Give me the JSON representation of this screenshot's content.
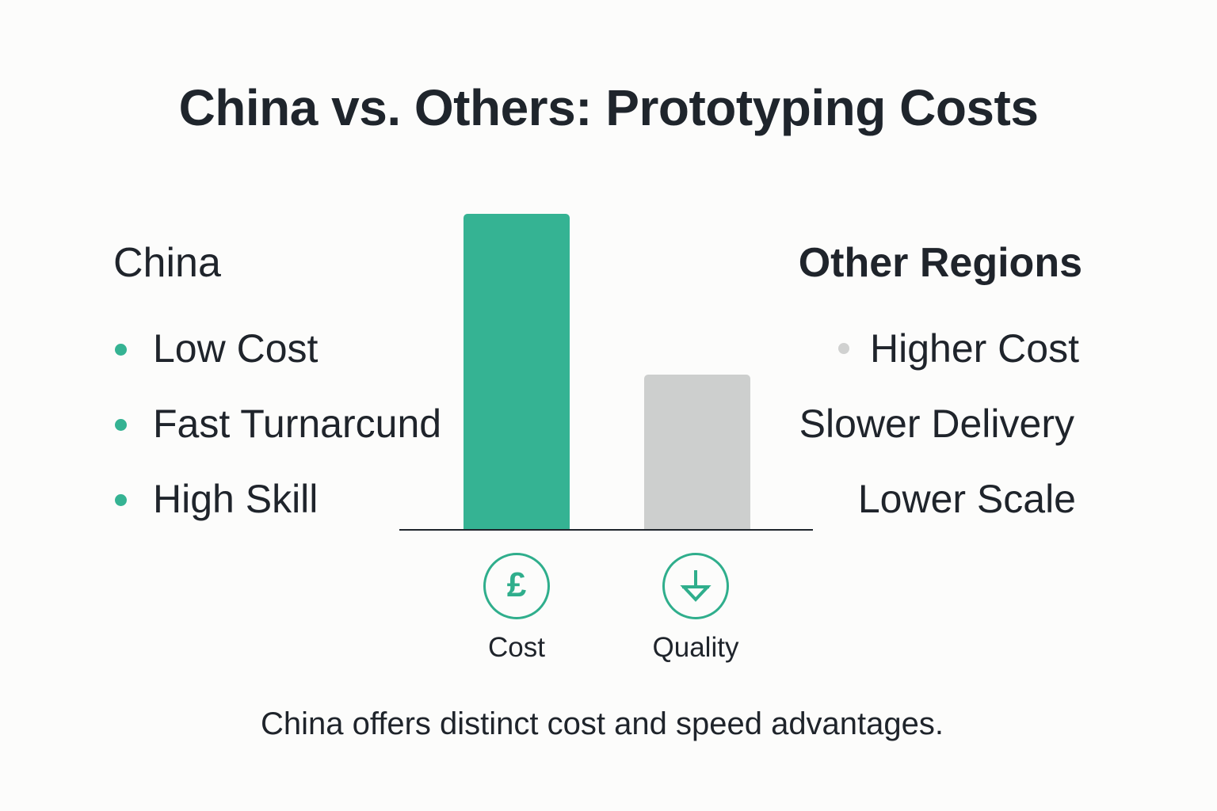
{
  "title": "China vs. Others: Prototyping Costs",
  "left": {
    "heading": "China",
    "bullet_color": "#35b393",
    "items": [
      {
        "label": "Low Cost",
        "bullet": true
      },
      {
        "label": "Fast Turnarcund",
        "bullet": true
      },
      {
        "label": "High Skill",
        "bullet": true
      }
    ]
  },
  "right": {
    "heading": "Other Regions",
    "bullet_color": "#d0d1d0",
    "items": [
      {
        "label": "Higher Cost",
        "bullet": true
      },
      {
        "label": "Slower Delivery",
        "bullet": false
      },
      {
        "label": "Lower Scale",
        "bullet": false
      }
    ]
  },
  "chart_data": {
    "type": "bar",
    "title": "China vs. Others: Prototyping Costs",
    "categories": [
      "China",
      "Other Regions"
    ],
    "values": [
      100,
      49
    ],
    "colors": [
      "#35b393",
      "#cdcfce"
    ],
    "xlabel": "",
    "ylabel": "",
    "ylim": [
      0,
      100
    ],
    "grid": false,
    "legend": "none",
    "axis_icons": [
      {
        "label": "Cost",
        "icon": "pound-sign-icon"
      },
      {
        "label": "Quality",
        "icon": "arrow-down-icon"
      }
    ],
    "annotations": []
  },
  "icons": [
    {
      "label": "Cost",
      "icon": "pound-sign-icon",
      "glyph": "£"
    },
    {
      "label": "Quality",
      "icon": "arrow-down-icon"
    }
  ],
  "caption": "China offers distinct cost and speed advantages.",
  "colors": {
    "accent": "#35b393",
    "icon_stroke": "#2fae8c",
    "neutral_bar": "#cdcfce",
    "text": "#1f242b",
    "background": "#fcfcfb"
  }
}
